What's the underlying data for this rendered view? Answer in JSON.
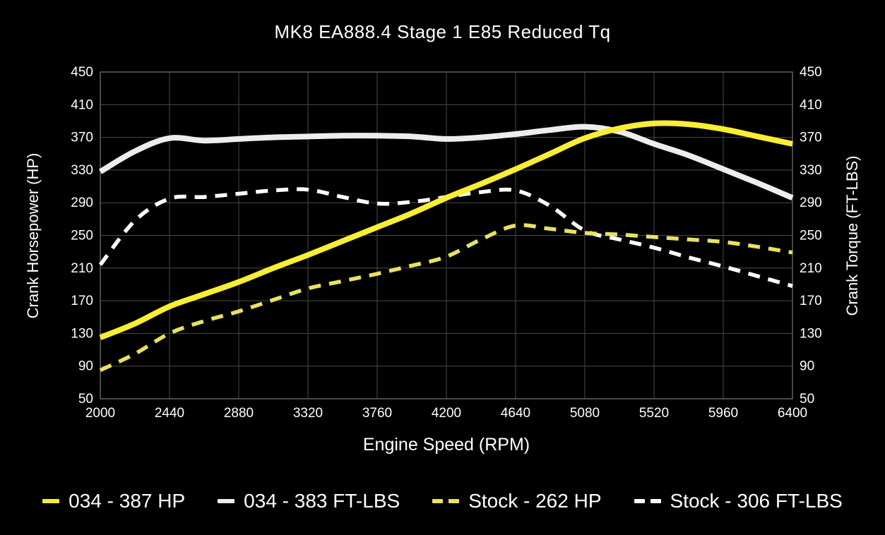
{
  "title": "MK8 EA888.4 Stage 1 E85 Reduced Tq",
  "colors": {
    "background": "#000000",
    "text": "#ffffff",
    "gridline": "#4a4a4a",
    "plot_border": "#7a7a7a",
    "accent_yellow": "#f8ee33",
    "accent_white": "#ededed"
  },
  "chart_data": {
    "type": "line",
    "title": "MK8 EA888.4 Stage 1 E85 Reduced Tq",
    "xlabel": "Engine Speed (RPM)",
    "ylabel_left": "Crank Horsepower (HP)",
    "ylabel_right": "Crank Torque (FT-LBS)",
    "xlim": [
      2000,
      6400
    ],
    "ylim": [
      50,
      450
    ],
    "x_ticks": [
      2000,
      2440,
      2880,
      3320,
      3760,
      4200,
      4640,
      5080,
      5520,
      5960,
      6400
    ],
    "y_ticks": [
      50,
      90,
      130,
      170,
      210,
      250,
      290,
      330,
      370,
      410,
      450
    ],
    "grid": true,
    "legend_position": "bottom",
    "x": [
      2000,
      2220,
      2440,
      2660,
      2880,
      3100,
      3320,
      3540,
      3760,
      3980,
      4200,
      4420,
      4640,
      4860,
      5080,
      5300,
      5520,
      5740,
      5960,
      6180,
      6400
    ],
    "series": [
      {
        "name": "034 - 387 HP",
        "style": "solid",
        "color": "#f8ee33",
        "peak": 387,
        "values": [
          125,
          142,
          163,
          178,
          193,
          210,
          226,
          243,
          260,
          277,
          296,
          313,
          331,
          350,
          369,
          381,
          387,
          386,
          380,
          371,
          362
        ]
      },
      {
        "name": "034 - 383 FT-LBS",
        "style": "solid",
        "color": "#ededed",
        "peak": 383,
        "values": [
          328,
          353,
          369,
          366,
          368,
          370,
          371,
          372,
          372,
          371,
          368,
          370,
          374,
          379,
          383,
          377,
          362,
          348,
          331,
          314,
          296
        ]
      },
      {
        "name": "Stock - 262 HP",
        "style": "dashed",
        "color": "#e9e160",
        "peak": 262,
        "values": [
          85,
          105,
          130,
          145,
          157,
          171,
          185,
          194,
          203,
          213,
          224,
          245,
          262,
          258,
          253,
          251,
          248,
          245,
          242,
          236,
          229
        ]
      },
      {
        "name": "Stock - 306 FT-LBS",
        "style": "dashed",
        "color": "#ffffff",
        "peak": 306,
        "values": [
          214,
          268,
          295,
          297,
          301,
          305,
          306,
          297,
          289,
          291,
          297,
          303,
          305,
          286,
          256,
          245,
          235,
          223,
          212,
          200,
          188
        ]
      }
    ]
  }
}
